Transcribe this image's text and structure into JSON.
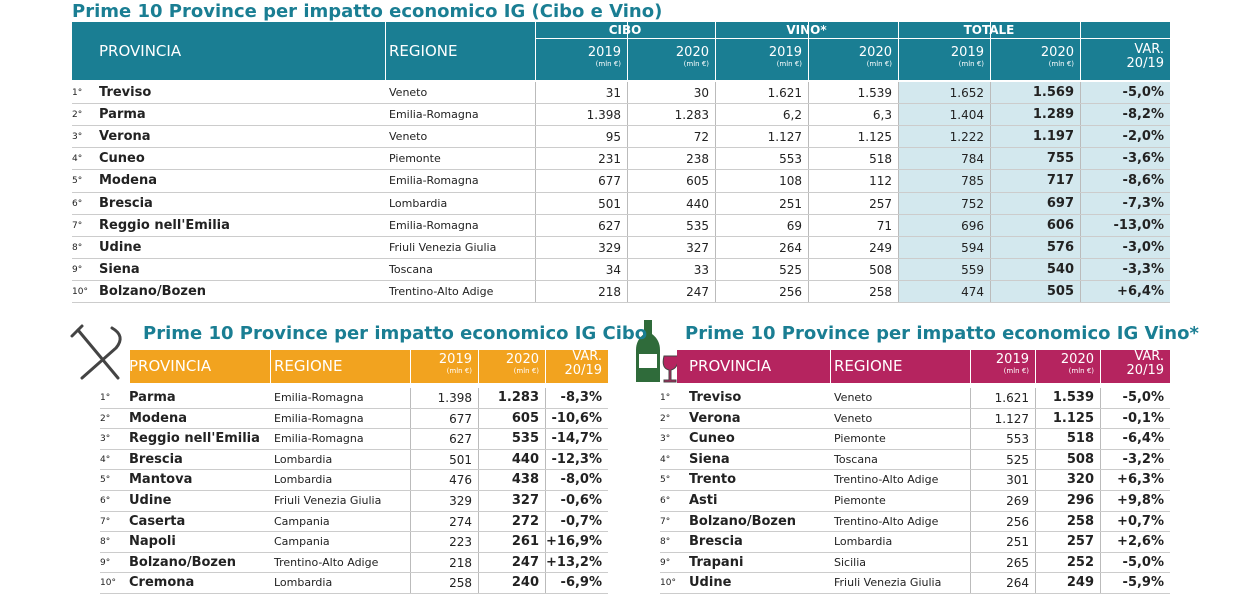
{
  "main": {
    "title": "Prime 10 Province per impatto economico IG (Cibo e Vino)",
    "headers": {
      "provincia": "PROVINCIA",
      "regione": "REGIONE",
      "groups": [
        "CIBO",
        "VINO*",
        "TOTALE"
      ],
      "year1": "2019",
      "year2": "2020",
      "unit": "(mln €)",
      "var1": "VAR.",
      "var2": "20/19"
    },
    "rows": [
      [
        "1°",
        "Treviso",
        "Veneto",
        "31",
        "30",
        "1.621",
        "1.539",
        "1.652",
        "1.569",
        "-5,0%"
      ],
      [
        "2°",
        "Parma",
        "Emilia-Romagna",
        "1.398",
        "1.283",
        "6,2",
        "6,3",
        "1.404",
        "1.289",
        "-8,2%"
      ],
      [
        "3°",
        "Verona",
        "Veneto",
        "95",
        "72",
        "1.127",
        "1.125",
        "1.222",
        "1.197",
        "-2,0%"
      ],
      [
        "4°",
        "Cuneo",
        "Piemonte",
        "231",
        "238",
        "553",
        "518",
        "784",
        "755",
        "-3,6%"
      ],
      [
        "5°",
        "Modena",
        "Emilia-Romagna",
        "677",
        "605",
        "108",
        "112",
        "785",
        "717",
        "-8,6%"
      ],
      [
        "6°",
        "Brescia",
        "Lombardia",
        "501",
        "440",
        "251",
        "257",
        "752",
        "697",
        "-7,3%"
      ],
      [
        "7°",
        "Reggio nell'Emilia",
        "Emilia-Romagna",
        "627",
        "535",
        "69",
        "71",
        "696",
        "606",
        "-13,0%"
      ],
      [
        "8°",
        "Udine",
        "Friuli Venezia Giulia",
        "329",
        "327",
        "264",
        "249",
        "594",
        "576",
        "-3,0%"
      ],
      [
        "9°",
        "Siena",
        "Toscana",
        "34",
        "33",
        "525",
        "508",
        "559",
        "540",
        "-3,3%"
      ],
      [
        "10°",
        "Bolzano/Bozen",
        "Trentino-Alto Adige",
        "218",
        "247",
        "256",
        "258",
        "474",
        "505",
        "+6,4%"
      ]
    ]
  },
  "cibo": {
    "title": "Prime 10 Province per impatto economico IG Cibo",
    "headers": {
      "provincia": "PROVINCIA",
      "regione": "REGIONE",
      "year1": "2019",
      "year2": "2020",
      "unit": "(mln €)",
      "var1": "VAR.",
      "var2": "20/19"
    },
    "rows": [
      [
        "1°",
        "Parma",
        "Emilia-Romagna",
        "1.398",
        "1.283",
        "-8,3%"
      ],
      [
        "2°",
        "Modena",
        "Emilia-Romagna",
        "677",
        "605",
        "-10,6%"
      ],
      [
        "3°",
        "Reggio nell'Emilia",
        "Emilia-Romagna",
        "627",
        "535",
        "-14,7%"
      ],
      [
        "4°",
        "Brescia",
        "Lombardia",
        "501",
        "440",
        "-12,3%"
      ],
      [
        "5°",
        "Mantova",
        "Lombardia",
        "476",
        "438",
        "-8,0%"
      ],
      [
        "6°",
        "Udine",
        "Friuli Venezia Giulia",
        "329",
        "327",
        "-0,6%"
      ],
      [
        "7°",
        "Caserta",
        "Campania",
        "274",
        "272",
        "-0,7%"
      ],
      [
        "8°",
        "Napoli",
        "Campania",
        "223",
        "261",
        "+16,9%"
      ],
      [
        "9°",
        "Bolzano/Bozen",
        "Trentino-Alto Adige",
        "218",
        "247",
        "+13,2%"
      ],
      [
        "10°",
        "Cremona",
        "Lombardia",
        "258",
        "240",
        "-6,9%"
      ]
    ]
  },
  "vino": {
    "title": "Prime 10 Province per impatto economico IG Vino*",
    "headers": {
      "provincia": "PROVINCIA",
      "regione": "REGIONE",
      "year1": "2019",
      "year2": "2020",
      "unit": "(mln €)",
      "var1": "VAR.",
      "var2": "20/19"
    },
    "rows": [
      [
        "1°",
        "Treviso",
        "Veneto",
        "1.621",
        "1.539",
        "-5,0%"
      ],
      [
        "2°",
        "Verona",
        "Veneto",
        "1.127",
        "1.125",
        "-0,1%"
      ],
      [
        "3°",
        "Cuneo",
        "Piemonte",
        "553",
        "518",
        "-6,4%"
      ],
      [
        "4°",
        "Siena",
        "Toscana",
        "525",
        "508",
        "-3,2%"
      ],
      [
        "5°",
        "Trento",
        "Trentino-Alto Adige",
        "301",
        "320",
        "+6,3%"
      ],
      [
        "6°",
        "Asti",
        "Piemonte",
        "269",
        "296",
        "+9,8%"
      ],
      [
        "7°",
        "Bolzano/Bozen",
        "Trentino-Alto Adige",
        "256",
        "258",
        "+0,7%"
      ],
      [
        "8°",
        "Brescia",
        "Lombardia",
        "251",
        "257",
        "+2,6%"
      ],
      [
        "9°",
        "Trapani",
        "Sicilia",
        "265",
        "252",
        "-5,0%"
      ],
      [
        "10°",
        "Udine",
        "Friuli Venezia Giulia",
        "264",
        "249",
        "-5,9%"
      ]
    ]
  }
}
